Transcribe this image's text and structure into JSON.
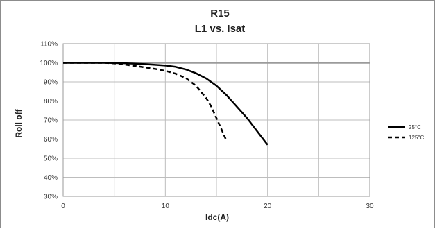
{
  "chart_data": {
    "type": "line",
    "title": "R15",
    "subtitle": "L1 vs. Isat",
    "xlabel": "Idc(A)",
    "ylabel": "Roll off",
    "xlim": [
      0,
      30
    ],
    "ylim": [
      30,
      110
    ],
    "x_ticks": [
      0,
      10,
      20,
      30
    ],
    "x_tick_labels": [
      "0",
      "10",
      "20",
      "30"
    ],
    "y_ticks": [
      30,
      40,
      50,
      60,
      70,
      80,
      90,
      100,
      110
    ],
    "y_tick_labels": [
      "30%",
      "40%",
      "50%",
      "60%",
      "70%",
      "80%",
      "90%",
      "100%",
      "110%"
    ],
    "grid": true,
    "reference_line": 100,
    "legend_position": "right",
    "series": [
      {
        "name": "25°C",
        "style": "solid",
        "color": "#000000",
        "x": [
          0,
          2,
          4,
          6,
          8,
          10,
          11,
          12,
          13,
          14,
          15,
          16,
          17,
          18,
          19,
          20
        ],
        "y": [
          100,
          100,
          100,
          99.8,
          99.3,
          98.6,
          97.9,
          96.5,
          94.5,
          91.8,
          88.0,
          83.0,
          77.0,
          71.0,
          64.0,
          57.0
        ]
      },
      {
        "name": "125°C",
        "style": "dashed",
        "color": "#000000",
        "x": [
          0,
          2,
          4,
          5,
          6,
          7,
          8,
          9,
          10,
          11,
          12,
          13,
          14,
          14.5,
          15,
          15.5,
          16
        ],
        "y": [
          100,
          100,
          100,
          99.7,
          99.1,
          98.4,
          97.6,
          96.8,
          95.8,
          94.3,
          92.0,
          88.0,
          81.5,
          77.0,
          71.0,
          65.0,
          59.0
        ]
      }
    ]
  }
}
